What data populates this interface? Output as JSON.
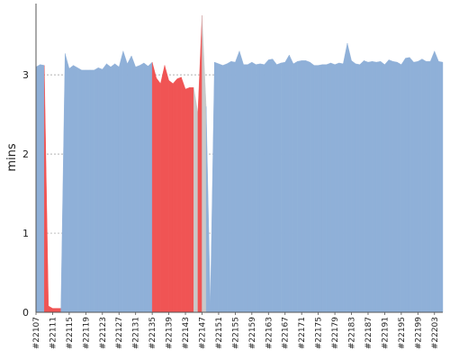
{
  "chart_data": {
    "type": "area",
    "ylabel": "mins",
    "xlabel": "",
    "title": "",
    "ylim": [
      0,
      3.9
    ],
    "yticks": [
      0,
      1,
      2,
      3
    ],
    "grid": "horizontal-dashed",
    "x_labels": [
      "#22107",
      "#22111",
      "#22115",
      "#22119",
      "#22123",
      "#22127",
      "#22131",
      "#22135",
      "#22139",
      "#22143",
      "#22147",
      "#22151",
      "#22155",
      "#22159",
      "#22163",
      "#22167",
      "#22171",
      "#22175",
      "#22179",
      "#22183",
      "#22187",
      "#22191",
      "#22195",
      "#22199",
      "#22203"
    ],
    "x": [
      22107,
      22108,
      22109,
      22110,
      22111,
      22112,
      22113,
      22114,
      22115,
      22116,
      22117,
      22118,
      22119,
      22120,
      22121,
      22122,
      22123,
      22124,
      22125,
      22126,
      22127,
      22128,
      22129,
      22130,
      22131,
      22132,
      22133,
      22134,
      22135,
      22136,
      22137,
      22138,
      22139,
      22140,
      22141,
      22142,
      22143,
      22144,
      22145,
      22146,
      22147,
      22148,
      22149,
      22150,
      22151,
      22152,
      22153,
      22154,
      22155,
      22156,
      22157,
      22158,
      22159,
      22160,
      22161,
      22162,
      22163,
      22164,
      22165,
      22166,
      22167,
      22168,
      22169,
      22170,
      22171,
      22172,
      22173,
      22174,
      22175,
      22176,
      22177,
      22178,
      22179,
      22180,
      22181,
      22182,
      22183,
      22184,
      22185,
      22186,
      22187,
      22188,
      22189,
      22190,
      22191,
      22192,
      22193,
      22194,
      22195,
      22196,
      22197,
      22198,
      22199,
      22200,
      22201,
      22202,
      22203,
      22204,
      22205
    ],
    "values": [
      3.1,
      3.13,
      3.12,
      0.08,
      0.05,
      0.05,
      0.05,
      3.27,
      3.08,
      3.12,
      3.09,
      3.06,
      3.06,
      3.06,
      3.06,
      3.09,
      3.07,
      3.14,
      3.1,
      3.14,
      3.1,
      3.3,
      3.14,
      3.24,
      3.1,
      3.12,
      3.15,
      3.11,
      3.16,
      2.96,
      2.89,
      3.12,
      2.93,
      2.89,
      2.95,
      2.97,
      2.82,
      2.84,
      2.84,
      2.52,
      3.75,
      2.6,
      0.08,
      3.16,
      3.14,
      3.12,
      3.14,
      3.17,
      3.16,
      3.3,
      3.13,
      3.13,
      3.16,
      3.13,
      3.14,
      3.13,
      3.19,
      3.2,
      3.13,
      3.15,
      3.16,
      3.25,
      3.14,
      3.17,
      3.18,
      3.18,
      3.16,
      3.12,
      3.12,
      3.13,
      3.13,
      3.15,
      3.13,
      3.15,
      3.14,
      3.4,
      3.18,
      3.14,
      3.13,
      3.18,
      3.16,
      3.17,
      3.16,
      3.17,
      3.13,
      3.19,
      3.17,
      3.16,
      3.13,
      3.21,
      3.22,
      3.16,
      3.17,
      3.2,
      3.17,
      3.17,
      3.3,
      3.17,
      3.16
    ],
    "status": [
      "ok",
      "ok",
      "ok",
      "failed",
      "failed",
      "failed",
      "failed",
      "ok",
      "ok",
      "ok",
      "ok",
      "ok",
      "ok",
      "ok",
      "ok",
      "ok",
      "ok",
      "ok",
      "ok",
      "ok",
      "ok",
      "ok",
      "ok",
      "ok",
      "ok",
      "ok",
      "ok",
      "ok",
      "ok",
      "failed",
      "failed",
      "failed",
      "failed",
      "failed",
      "failed",
      "failed",
      "failed",
      "failed",
      "failed",
      "aborted",
      "failed",
      "aborted",
      "ok",
      "ok",
      "ok",
      "ok",
      "ok",
      "ok",
      "ok",
      "ok",
      "ok",
      "ok",
      "ok",
      "ok",
      "ok",
      "ok",
      "ok",
      "ok",
      "ok",
      "ok",
      "ok",
      "ok",
      "ok",
      "ok",
      "ok",
      "ok",
      "ok",
      "ok",
      "ok",
      "ok",
      "ok",
      "ok",
      "ok",
      "ok",
      "ok",
      "ok",
      "ok",
      "ok",
      "ok",
      "ok",
      "ok",
      "ok",
      "ok",
      "ok",
      "ok",
      "ok",
      "ok",
      "ok",
      "ok",
      "ok",
      "ok",
      "ok",
      "ok",
      "ok",
      "ok",
      "ok",
      "ok",
      "ok",
      "ok"
    ],
    "colors": {
      "ok": "#8fb0d8",
      "failed": "#f05454",
      "aborted": "#c9c9c9",
      "grid": "#9a9a9a",
      "axis": "#555555"
    }
  }
}
